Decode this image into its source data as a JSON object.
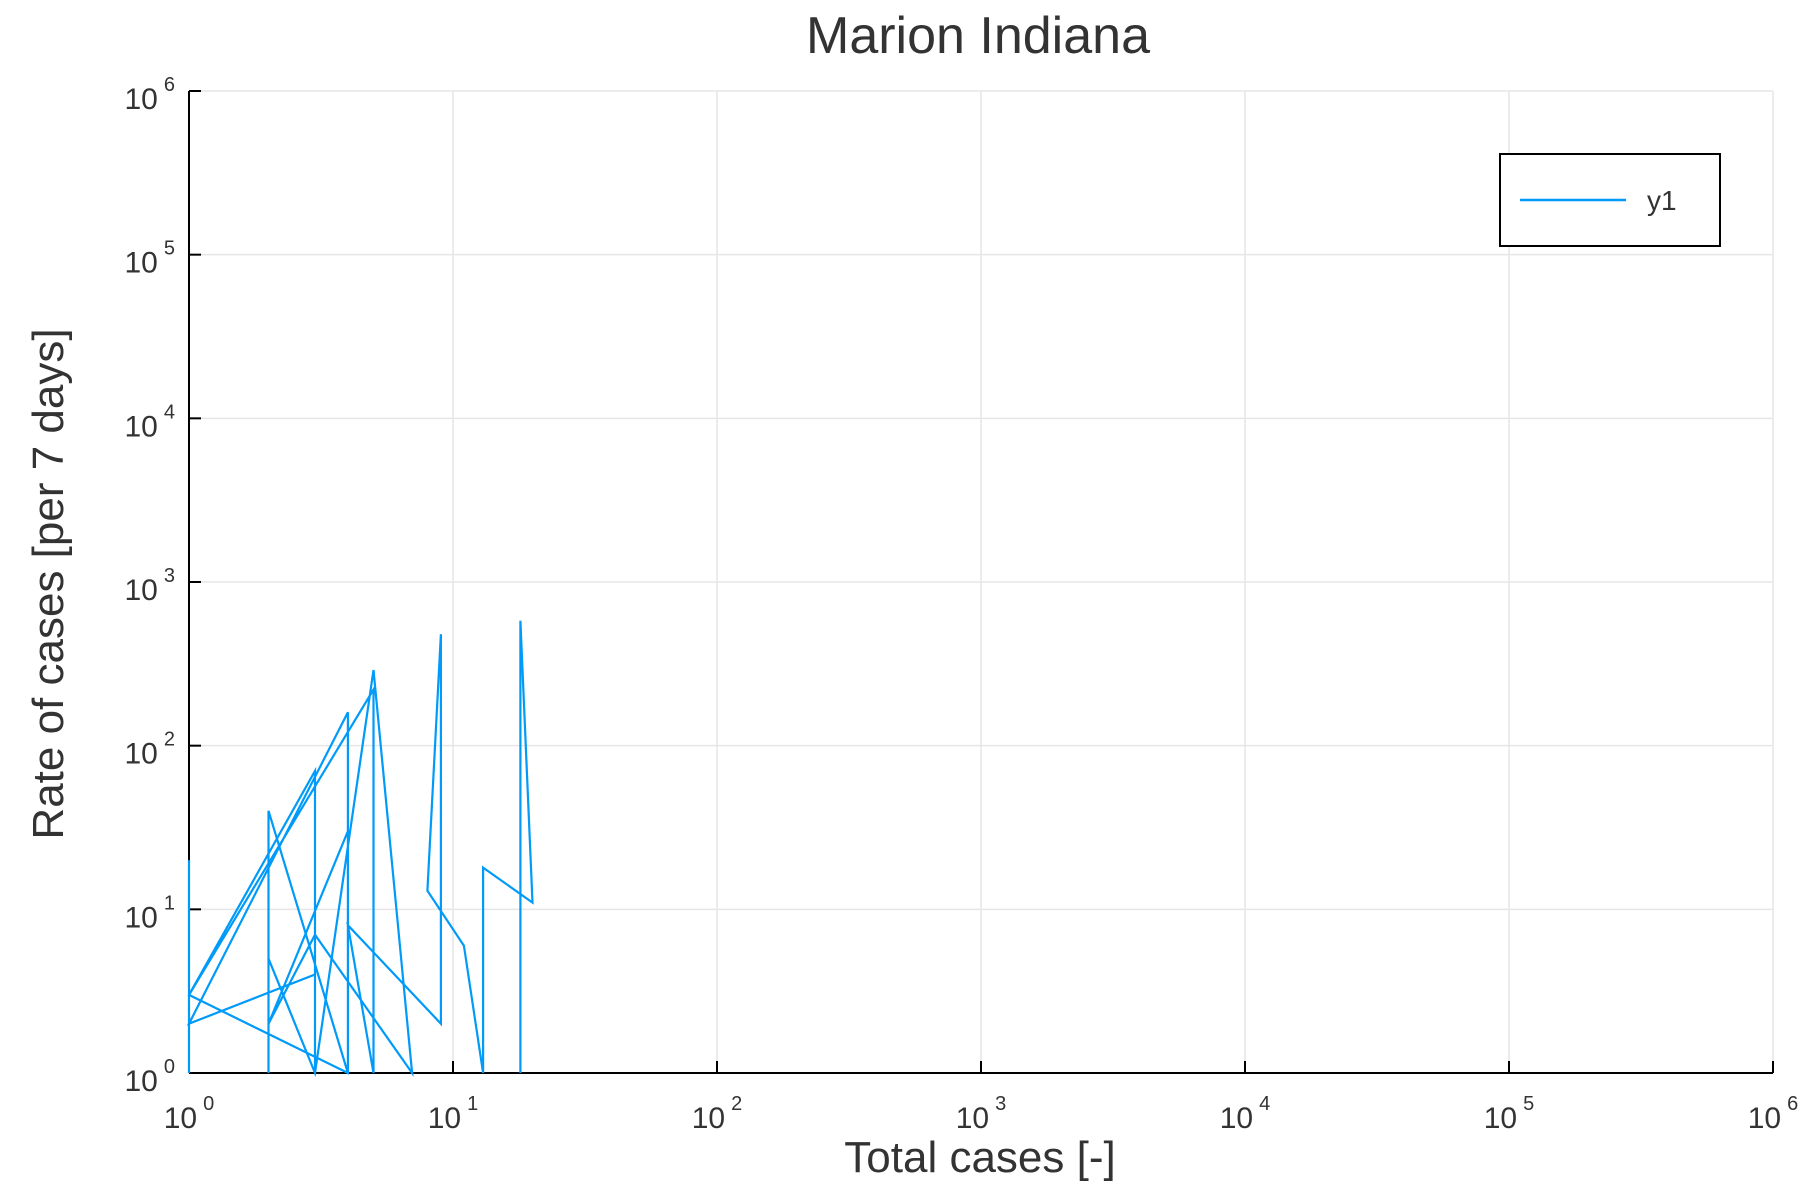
{
  "chart_data": {
    "type": "line",
    "title": "Marion Indiana",
    "xlabel": "Total cases [-]",
    "ylabel": "Rate of cases [per 7 days]",
    "xscale": "log",
    "yscale": "log",
    "xlim": [
      1,
      1000000
    ],
    "ylim": [
      1,
      1000000
    ],
    "grid": true,
    "legend_position": "top-right",
    "x_tick_labels": [
      {
        "base": "10",
        "exp": "0"
      },
      {
        "base": "10",
        "exp": "1"
      },
      {
        "base": "10",
        "exp": "2"
      },
      {
        "base": "10",
        "exp": "3"
      },
      {
        "base": "10",
        "exp": "4"
      },
      {
        "base": "10",
        "exp": "5"
      },
      {
        "base": "10",
        "exp": "6"
      }
    ],
    "y_tick_labels": [
      {
        "base": "10",
        "exp": "0"
      },
      {
        "base": "10",
        "exp": "1"
      },
      {
        "base": "10",
        "exp": "2"
      },
      {
        "base": "10",
        "exp": "3"
      },
      {
        "base": "10",
        "exp": "4"
      },
      {
        "base": "10",
        "exp": "5"
      },
      {
        "base": "10",
        "exp": "6"
      }
    ],
    "series": [
      {
        "name": "y1",
        "color": "#009af9",
        "x": [
          1,
          1,
          1,
          1,
          3,
          3,
          3,
          1,
          4,
          4,
          2,
          2,
          2,
          3,
          5,
          7,
          3,
          2,
          4,
          4,
          1,
          5,
          5,
          4,
          9,
          9,
          8,
          11,
          13,
          13,
          20,
          18,
          18
        ],
        "y": [
          1,
          20,
          1,
          3,
          70,
          1,
          4,
          2,
          160,
          1,
          40,
          1,
          5,
          1,
          290,
          1,
          7,
          2,
          30,
          1,
          3,
          220,
          1,
          8,
          2,
          480,
          13,
          6,
          1,
          18,
          11,
          580,
          1
        ]
      }
    ]
  }
}
